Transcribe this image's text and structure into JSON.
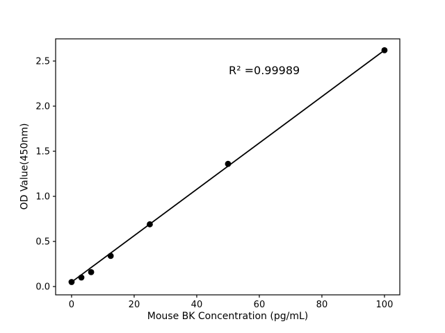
{
  "chart_data": {
    "type": "scatter",
    "title": "",
    "xlabel": "Mouse BK Concentration (pg/mL)",
    "ylabel": "OD Value(450nm)",
    "annotation": "R² =0.99989",
    "x": [
      0,
      3.125,
      6.25,
      12.5,
      25,
      50,
      100
    ],
    "y": [
      0.05,
      0.1,
      0.16,
      0.34,
      0.69,
      1.36,
      2.62
    ],
    "fit_line": {
      "x": [
        0,
        100
      ],
      "y": [
        0.05,
        2.62
      ]
    },
    "xticks": [
      0,
      20,
      40,
      60,
      80,
      100
    ],
    "yticks": [
      0.0,
      0.5,
      1.0,
      1.5,
      2.0,
      2.5
    ],
    "xlim": [
      -5.1,
      104.9
    ],
    "ylim": [
      -0.092,
      2.746
    ],
    "grid": false,
    "legend": null,
    "colors": {
      "marker": "#000000",
      "line": "#000000",
      "axis": "#000000",
      "text": "#000000",
      "background": "#ffffff"
    }
  }
}
